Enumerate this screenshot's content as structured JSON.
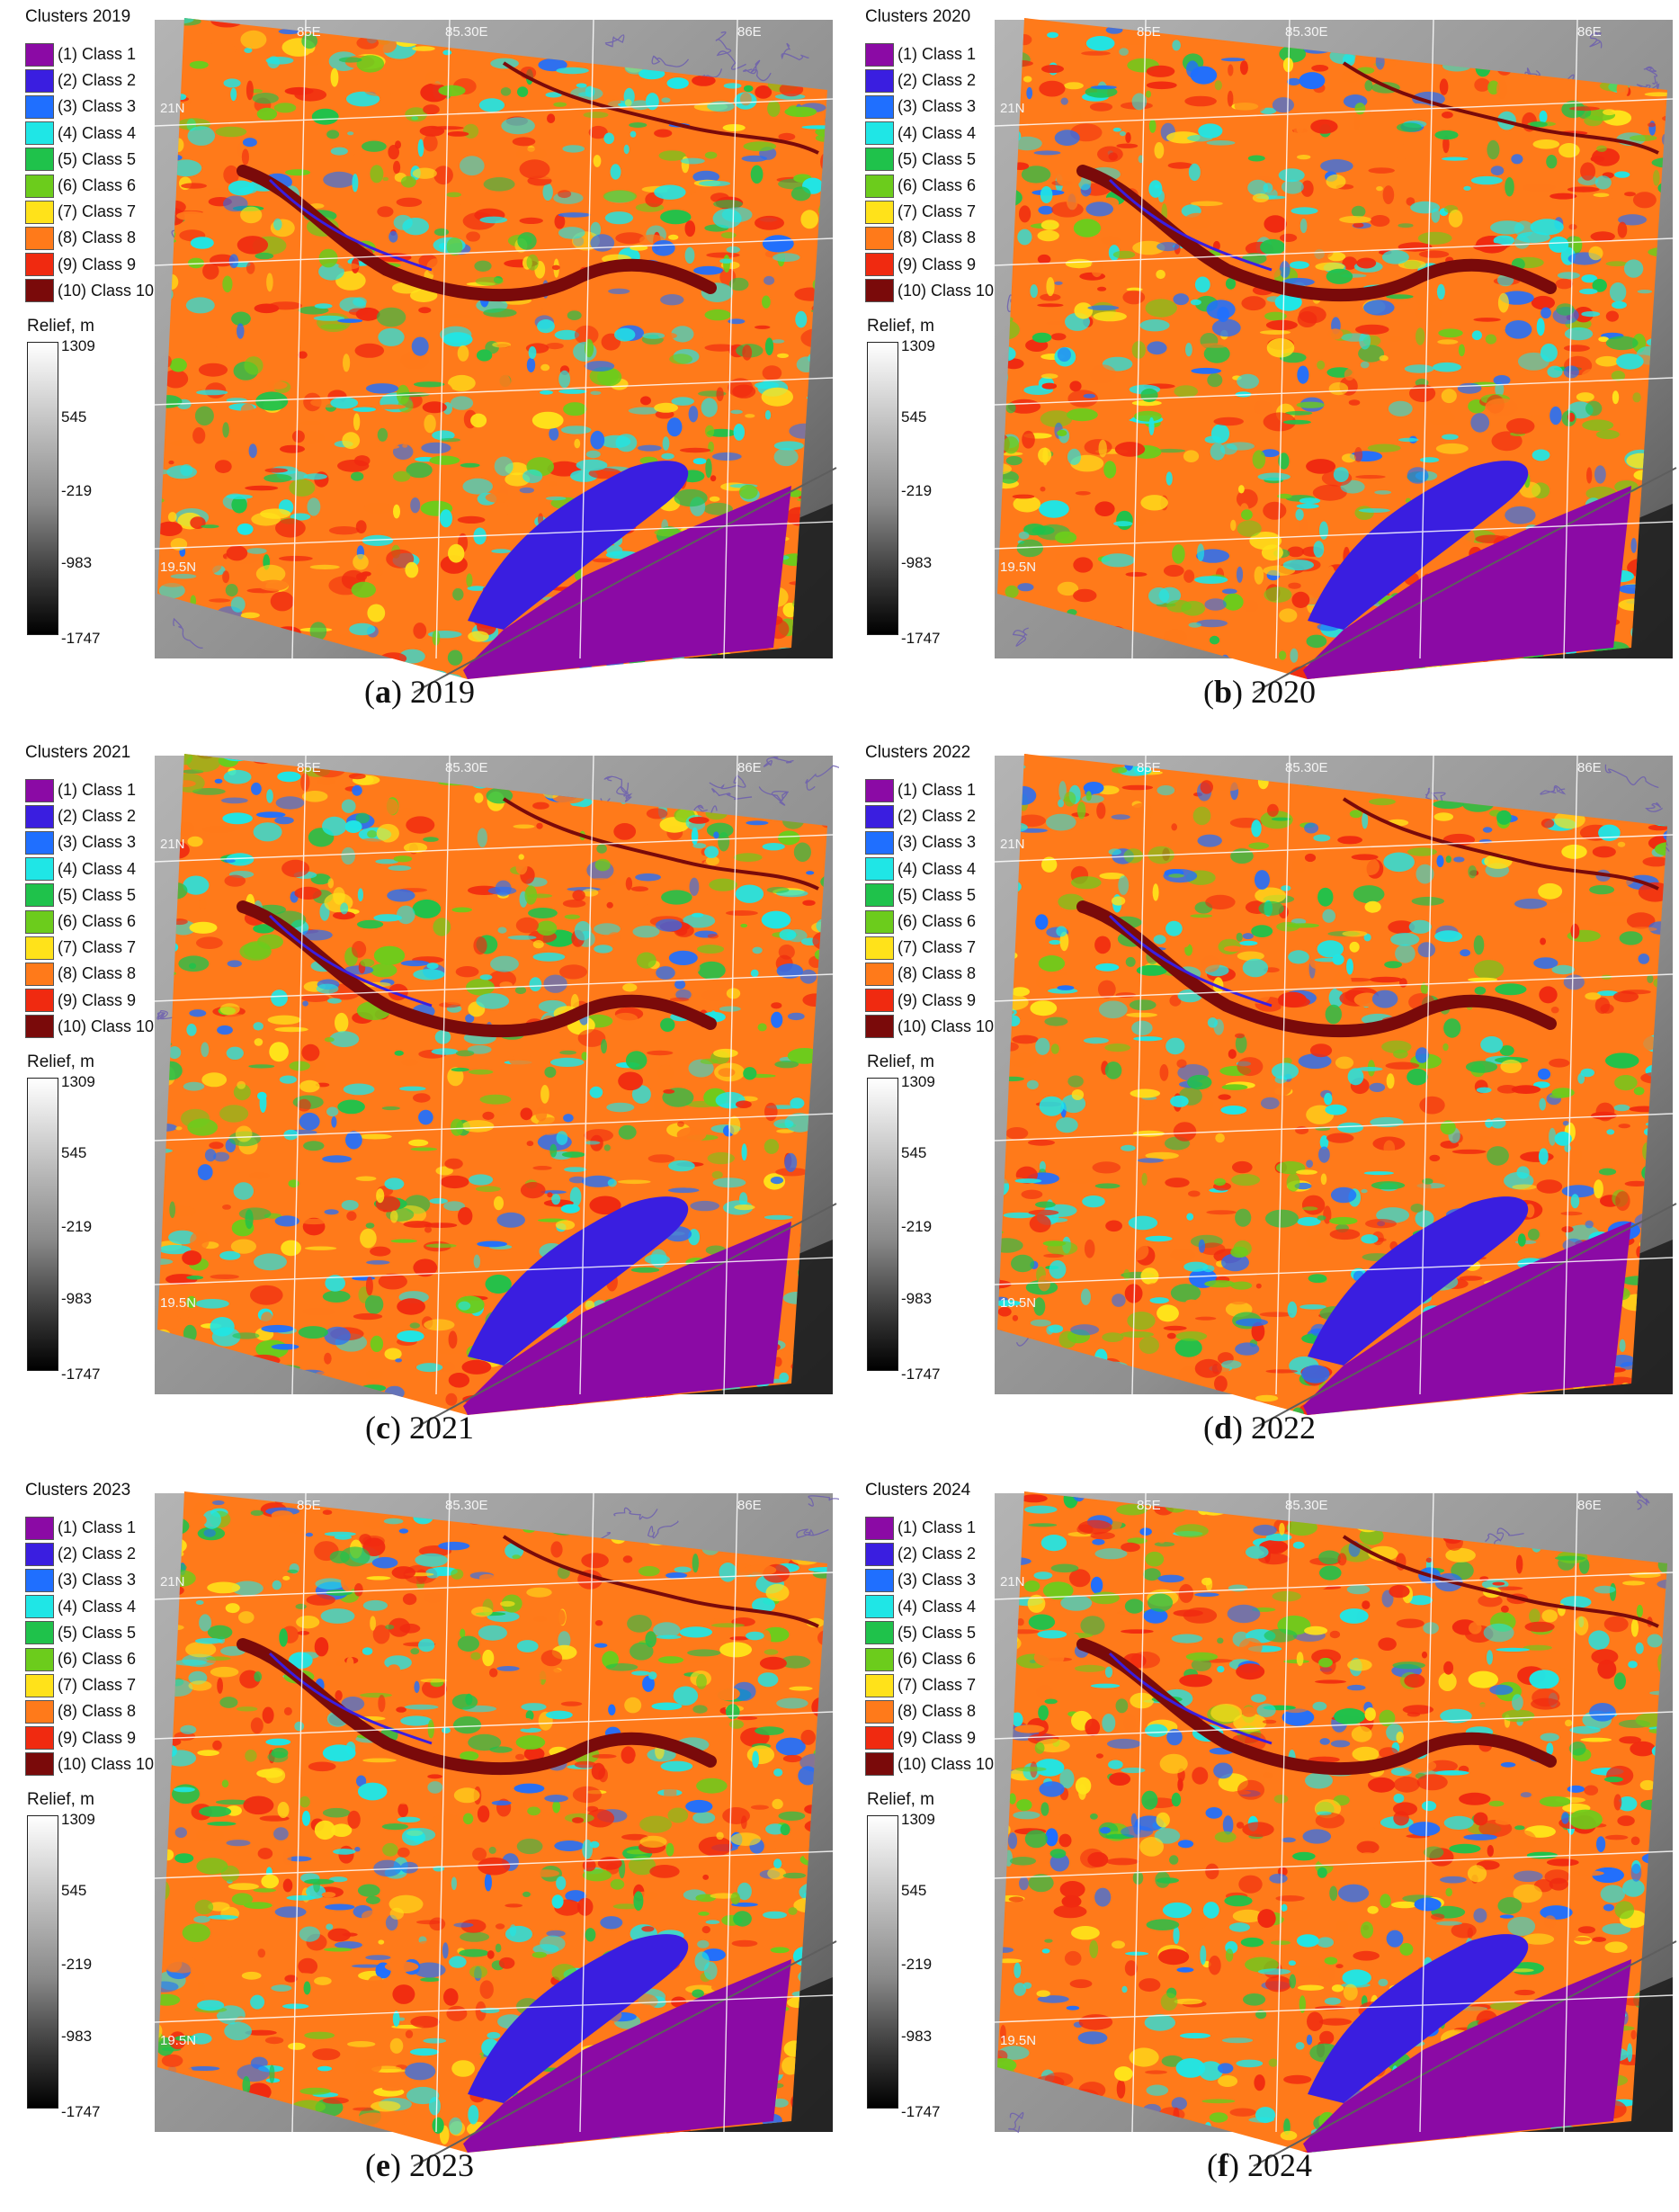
{
  "colors": {
    "class1": "#8b0aa5",
    "class2": "#3a1ee0",
    "class3": "#1f6fff",
    "class4": "#1fe6e6",
    "class5": "#1fc24b",
    "class6": "#6ccc1c",
    "class7": "#ffe21a",
    "class8": "#ff7a1a",
    "class9": "#f02a10",
    "class10": "#7a0a0a",
    "background_gray": "#8f8f8f",
    "contour": "#6a5bb0"
  },
  "legend_items": [
    {
      "label": "(1) Class 1",
      "color_key": "class1"
    },
    {
      "label": "(2) Class 2",
      "color_key": "class2"
    },
    {
      "label": "(3) Class 3",
      "color_key": "class3"
    },
    {
      "label": "(4) Class 4",
      "color_key": "class4"
    },
    {
      "label": "(5) Class 5",
      "color_key": "class5"
    },
    {
      "label": "(6) Class 6",
      "color_key": "class6"
    },
    {
      "label": "(7) Class 7",
      "color_key": "class7"
    },
    {
      "label": "(8) Class 8",
      "color_key": "class8"
    },
    {
      "label": "(9) Class 9",
      "color_key": "class9"
    },
    {
      "label": "(10) Class 10",
      "color_key": "class10"
    }
  ],
  "relief": {
    "title": "Relief, m",
    "ticks": [
      "1309",
      "545",
      "-219",
      "-983",
      "-1747"
    ]
  },
  "grid_labels": {
    "lat_top": "21N",
    "lat_bottom": "19.5N",
    "lon1": "85E",
    "lon2": "85.30E",
    "lon3": "86E"
  },
  "panels": [
    {
      "title": "Clusters 2019",
      "letter": "a",
      "year": "2019"
    },
    {
      "title": "Clusters 2020",
      "letter": "b",
      "year": "2020"
    },
    {
      "title": "Clusters 2021",
      "letter": "c",
      "year": "2021"
    },
    {
      "title": "Clusters 2022",
      "letter": "d",
      "year": "2022"
    },
    {
      "title": "Clusters 2023",
      "letter": "e",
      "year": "2023"
    },
    {
      "title": "Clusters 2024",
      "letter": "f",
      "year": "2024"
    }
  ]
}
